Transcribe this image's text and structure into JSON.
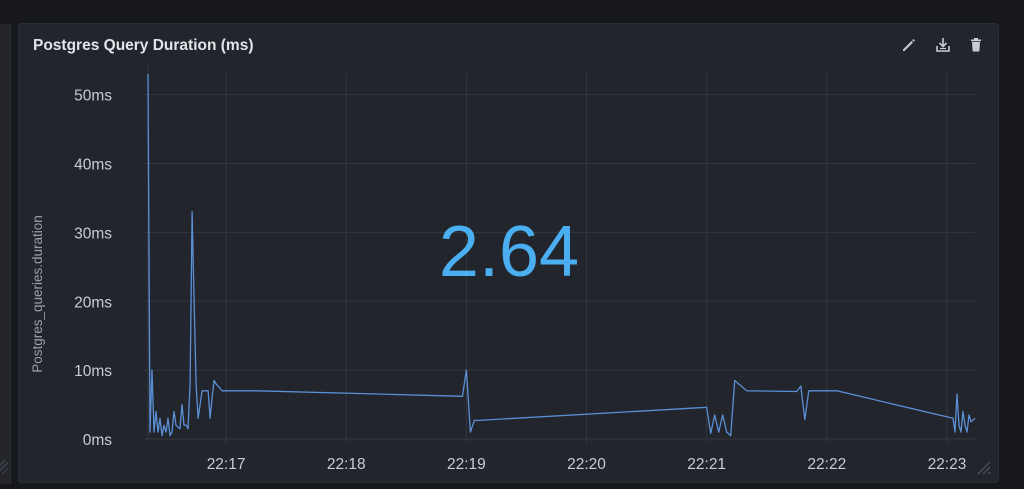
{
  "panel": {
    "title": "Postgres Query Duration (ms)",
    "icons": [
      "edit-icon",
      "download-icon",
      "trash-icon"
    ]
  },
  "colors": {
    "background": "#17181c",
    "panel": "#22252b",
    "grid": "#34373e",
    "line": "#5b8fd6",
    "big_value": "#4aaef0",
    "axis_text": "#c9ccd1",
    "ylabel_text": "#9aa0a8"
  },
  "chart_data": {
    "type": "line",
    "title": "Postgres Query Duration (ms)",
    "ylabel": "Postgres_queries.duration",
    "xlabel": "",
    "ylim": [
      0,
      53
    ],
    "y_ticks": [
      0,
      10,
      20,
      30,
      40,
      50
    ],
    "y_tick_labels": [
      "0ms",
      "10ms",
      "20ms",
      "30ms",
      "40ms",
      "50ms"
    ],
    "x_ticks": [
      "22:17",
      "22:18",
      "22:19",
      "22:20",
      "22:21",
      "22:22",
      "22:23"
    ],
    "xlim": [
      "22:16:21",
      "22:23:14"
    ],
    "grid": true,
    "big_value": "2.64",
    "series": [
      {
        "x": [
          "22:16:21",
          "22:16:22",
          "22:16:23",
          "22:16:24",
          "22:16:25",
          "22:16:26",
          "22:16:27",
          "22:16:28",
          "22:16:29",
          "22:16:30",
          "22:16:31",
          "22:16:32",
          "22:16:33",
          "22:16:34",
          "22:16:35",
          "22:16:37",
          "22:16:38",
          "22:16:39",
          "22:16:40",
          "22:16:41",
          "22:16:42",
          "22:16:43",
          "22:16:44",
          "22:16:45",
          "22:16:46",
          "22:16:48",
          "22:16:49",
          "22:16:50",
          "22:16:51",
          "22:16:52",
          "22:16:53",
          "22:16:54",
          "22:16:55",
          "22:16:58",
          "22:17:00",
          "22:17:03",
          "22:17:05",
          "22:17:08",
          "22:17:15",
          "22:18:58",
          "22:19:00",
          "22:19:02",
          "22:19:04",
          "22:19:06",
          "22:21:00",
          "22:21:02",
          "22:21:04",
          "22:21:06",
          "22:21:08",
          "22:21:10",
          "22:21:12",
          "22:21:14",
          "22:21:20",
          "22:21:45",
          "22:21:47",
          "22:21:49",
          "22:21:51",
          "22:21:55",
          "22:22:05",
          "22:23:03",
          "22:23:04",
          "22:23:05",
          "22:23:06",
          "22:23:07",
          "22:23:08",
          "22:23:09",
          "22:23:10",
          "22:23:11",
          "22:23:12",
          "22:23:14"
        ],
        "y": [
          53,
          1,
          10,
          1,
          4,
          1,
          3,
          0.5,
          2,
          1,
          3,
          0.5,
          1,
          4,
          2,
          1.5,
          5,
          2,
          2,
          1.5,
          8,
          33,
          20,
          8,
          3,
          7,
          7,
          7,
          7,
          3,
          6,
          8.5,
          8,
          7,
          7,
          7,
          7,
          7,
          7,
          6.2,
          10,
          1,
          2.7,
          2.7,
          4.6,
          0.8,
          3.5,
          1,
          3.5,
          1,
          0.5,
          8.5,
          7,
          6.9,
          7.7,
          2.8,
          7,
          7,
          7,
          3,
          1,
          6.5,
          2,
          1,
          4,
          2,
          1,
          3.5,
          2.5,
          3
        ]
      }
    ]
  }
}
